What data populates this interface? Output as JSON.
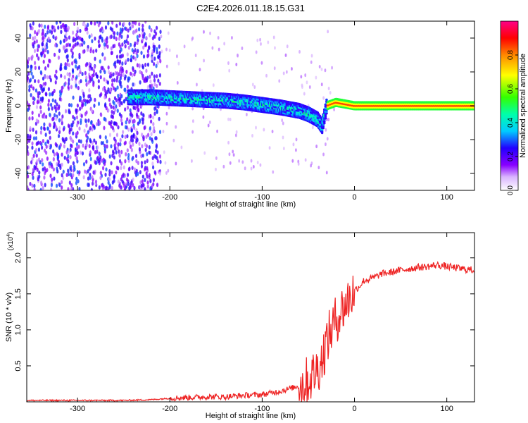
{
  "figure_title": "C2E4.2026.011.18.15.G31",
  "chart_data": [
    {
      "type": "heatmap",
      "title": "C2E4.2026.011.18.15.G31",
      "xlabel": "Height of straight line (km)",
      "ylabel": "Frequency (Hz)",
      "xlim": [
        -355,
        130
      ],
      "ylim": [
        -50,
        50
      ],
      "xticks": [
        -300,
        -200,
        -100,
        0,
        100
      ],
      "xtick_labels": [
        "-300",
        "-200",
        "-100",
        "0",
        "100"
      ],
      "yticks": [
        -40,
        -20,
        0,
        20,
        40
      ],
      "ytick_labels": [
        "-40",
        "-20",
        "0",
        "20",
        "40"
      ],
      "colorbar": {
        "label": "Normalized spectral amplitude",
        "range": [
          0,
          1
        ],
        "ticks": [
          0,
          0.2,
          0.4,
          0.6,
          0.8
        ],
        "tick_labels": [
          "0.0",
          "0.2",
          "0.4",
          "0.6",
          "0.8"
        ],
        "colors": [
          "#ffffff",
          "#cc99ff",
          "#8800ff",
          "#2200ff",
          "#00ccff",
          "#00ff88",
          "#44ff00",
          "#ffff00",
          "#ff8800",
          "#ff0000",
          "#ff0088"
        ]
      },
      "signal_track": {
        "x": [
          -245,
          -220,
          -200,
          -180,
          -160,
          -140,
          -120,
          -100,
          -80,
          -60,
          -50,
          -40,
          -35,
          -30,
          -20,
          -10,
          0,
          20,
          40,
          60,
          80,
          100,
          130
        ],
        "frequency": [
          5,
          5,
          4.5,
          4,
          3.5,
          3,
          2,
          0.5,
          -1,
          -3,
          -5,
          -8,
          -12,
          0,
          2,
          1,
          0,
          0,
          0,
          0,
          0,
          0,
          0
        ]
      },
      "noise_region_x": [
        -355,
        -210
      ]
    },
    {
      "type": "line",
      "xlabel": "Height of straight line (km)",
      "ylabel": "SNR (10 * v/v)",
      "exponent_label": "(x10",
      "exponent_power": "4",
      "exponent_close": ")",
      "xlim": [
        -355,
        130
      ],
      "ylim": [
        0,
        2.35
      ],
      "xticks": [
        -300,
        -200,
        -100,
        0,
        100
      ],
      "xtick_labels": [
        "-300",
        "-200",
        "-100",
        "0",
        "100"
      ],
      "yticks": [
        0.5,
        1.0,
        1.5,
        2.0
      ],
      "ytick_labels": [
        "0.5",
        "1.0",
        "1.5",
        "2.0"
      ],
      "series": [
        {
          "name": "SNR",
          "color": "#ee2222",
          "x": [
            -355,
            -300,
            -250,
            -220,
            -200,
            -180,
            -160,
            -140,
            -120,
            -100,
            -80,
            -60,
            -50,
            -40,
            -35,
            -30,
            -25,
            -20,
            -15,
            -10,
            -5,
            0,
            5,
            10,
            20,
            30,
            40,
            50,
            60,
            70,
            80,
            90,
            100,
            110,
            120,
            130
          ],
          "y": [
            0.02,
            0.02,
            0.02,
            0.03,
            0.05,
            0.06,
            0.07,
            0.07,
            0.09,
            0.1,
            0.15,
            0.22,
            0.3,
            0.45,
            0.6,
            0.85,
            1.0,
            1.15,
            1.25,
            1.35,
            1.45,
            1.55,
            1.6,
            1.68,
            1.72,
            1.78,
            1.8,
            1.83,
            1.85,
            1.87,
            1.88,
            1.9,
            1.88,
            1.86,
            1.84,
            1.83
          ]
        }
      ]
    }
  ]
}
